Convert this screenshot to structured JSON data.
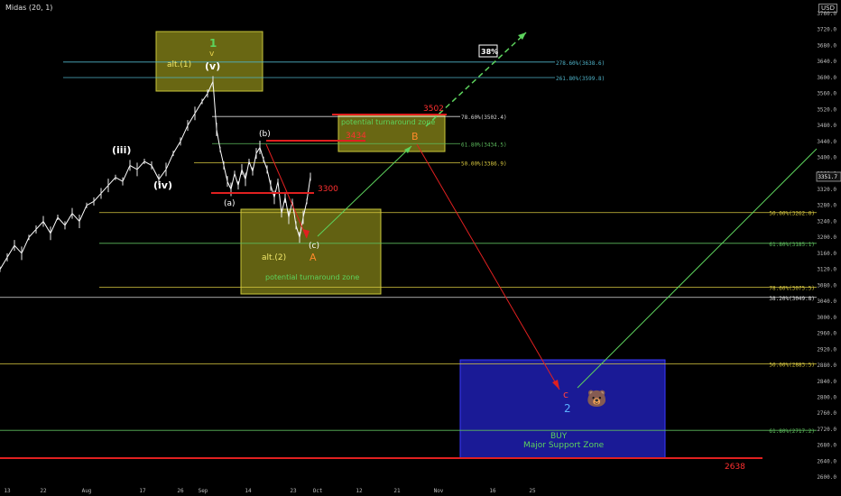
{
  "header": {
    "symbol_label": "Midas (20, 1)",
    "currency": "USD"
  },
  "chart_data": {
    "type": "line",
    "ylim": [
      2580,
      3760
    ],
    "price_ticks": [
      3760,
      3720,
      3680,
      3640,
      3600,
      3560,
      3520,
      3480,
      3440,
      3400,
      3360,
      3320,
      3280,
      3240,
      3200,
      3160,
      3120,
      3080,
      3040,
      3000,
      2960,
      2920,
      2880,
      2840,
      2800,
      2760,
      2720,
      2680,
      2640,
      2600
    ],
    "current_price": "3351.7",
    "x_ticks": [
      "13",
      "22",
      "Aug",
      "17",
      "26",
      "Sep",
      "14",
      "23",
      "Oct",
      "12",
      "21",
      "Nov",
      "16",
      "25"
    ],
    "fib_levels": [
      {
        "label": "278.60%(3638.6)",
        "value": 3638.6,
        "color": "#4fb3c9"
      },
      {
        "label": "261.80%(3599.8)",
        "value": 3599.8,
        "color": "#4fb3c9"
      },
      {
        "label": "78.60%(3502.4)",
        "value": 3502.4,
        "color": "#d9d9d9"
      },
      {
        "label": "61.80%(3434.5)",
        "value": 3434.5,
        "color": "#5dbb5d"
      },
      {
        "label": "50.00%(3386.9)",
        "value": 3386.9,
        "color": "#d8c840"
      },
      {
        "label": "50.00%(3262.0)",
        "value": 3262.0,
        "color": "#d8c840"
      },
      {
        "label": "61.80%(3185.1)",
        "value": 3185.1,
        "color": "#5dbb5d"
      },
      {
        "label": "78.60%(3075.5)",
        "value": 3075.5,
        "color": "#d8c840"
      },
      {
        "label": "38.20%(3049.8)",
        "value": 3049.8,
        "color": "#d9d9d9"
      },
      {
        "label": "50.00%(2883.5)",
        "value": 2883.5,
        "color": "#d8c840"
      },
      {
        "label": "61.80%(2717.2)",
        "value": 2717.2,
        "color": "#5dbb5d"
      }
    ],
    "price_series": [
      [
        0,
        3120
      ],
      [
        8,
        3150
      ],
      [
        16,
        3180
      ],
      [
        24,
        3160
      ],
      [
        32,
        3200
      ],
      [
        40,
        3220
      ],
      [
        48,
        3240
      ],
      [
        56,
        3210
      ],
      [
        64,
        3250
      ],
      [
        72,
        3230
      ],
      [
        80,
        3260
      ],
      [
        88,
        3240
      ],
      [
        96,
        3280
      ],
      [
        104,
        3290
      ],
      [
        112,
        3310
      ],
      [
        120,
        3330
      ],
      [
        128,
        3350
      ],
      [
        136,
        3340
      ],
      [
        144,
        3380
      ],
      [
        152,
        3370
      ],
      [
        160,
        3390
      ],
      [
        168,
        3380
      ],
      [
        176,
        3345
      ],
      [
        184,
        3370
      ],
      [
        192,
        3410
      ],
      [
        200,
        3440
      ],
      [
        208,
        3480
      ],
      [
        216,
        3510
      ],
      [
        224,
        3540
      ],
      [
        230,
        3560
      ],
      [
        236,
        3590
      ],
      [
        240,
        3470
      ],
      [
        244,
        3420
      ],
      [
        248,
        3380
      ],
      [
        252,
        3340
      ],
      [
        256,
        3320
      ],
      [
        260,
        3360
      ],
      [
        264,
        3330
      ],
      [
        268,
        3370
      ],
      [
        272,
        3345
      ],
      [
        276,
        3390
      ],
      [
        280,
        3365
      ],
      [
        284,
        3410
      ],
      [
        288,
        3425
      ],
      [
        292,
        3395
      ],
      [
        296,
        3370
      ],
      [
        300,
        3330
      ],
      [
        304,
        3300
      ],
      [
        308,
        3340
      ],
      [
        312,
        3260
      ],
      [
        316,
        3300
      ],
      [
        320,
        3250
      ],
      [
        324,
        3290
      ],
      [
        328,
        3230
      ],
      [
        332,
        3200
      ],
      [
        336,
        3250
      ],
      [
        340,
        3290
      ],
      [
        344,
        3351.7
      ]
    ],
    "annotations": {
      "wave_iii": "(iii)",
      "wave_iv": "(iv)",
      "wave_v": "(v)",
      "wave_a": "(a)",
      "wave_b": "(b)",
      "wave_c": "(c)",
      "wave_1_green": "1",
      "alt_1": "alt.(1)",
      "alt_2": "alt.(2)",
      "wave_A": "A",
      "wave_B": "B",
      "wave_c_red": "c",
      "wave_2": "2",
      "level_3300": "3300",
      "level_3434": "3434",
      "level_3502": "3502",
      "level_2638": "2638",
      "pct_38": "38%",
      "ptz_upper": "potential turnaround zone",
      "ptz_lower": "potential turnaround zone",
      "buy": "BUY",
      "support_zone": "Major Support Zone"
    }
  }
}
